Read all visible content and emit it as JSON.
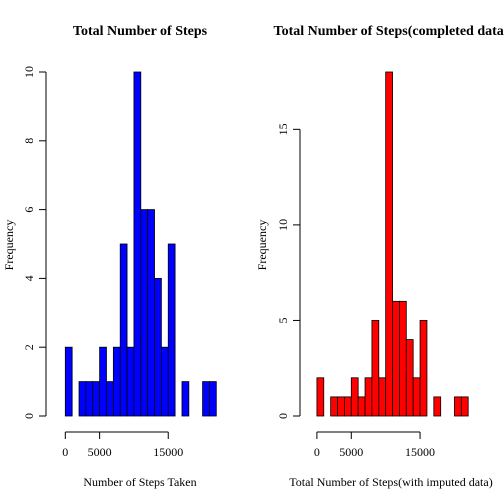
{
  "chart_data": [
    {
      "type": "bar",
      "histogram": true,
      "title": "Total Number of Steps",
      "xlabel": "Number of Steps Taken",
      "ylabel": "Frequency",
      "bar_color": "#0000FF",
      "bin_width": 1000,
      "bin_starts": [
        0,
        1000,
        2000,
        3000,
        4000,
        5000,
        6000,
        7000,
        8000,
        9000,
        10000,
        11000,
        12000,
        13000,
        14000,
        15000,
        16000,
        17000,
        18000,
        19000,
        20000,
        21000
      ],
      "values": [
        2,
        0,
        1,
        1,
        1,
        2,
        1,
        2,
        5,
        2,
        10,
        6,
        6,
        4,
        2,
        5,
        0,
        1,
        0,
        0,
        1,
        1
      ],
      "xlim": [
        0,
        22000
      ],
      "ylim": [
        0,
        10
      ],
      "x_ticks": [
        0,
        5000,
        15000
      ],
      "y_ticks": [
        0,
        2,
        4,
        6,
        8,
        10
      ]
    },
    {
      "type": "bar",
      "histogram": true,
      "title": "Total Number of Steps(completed data)",
      "xlabel": "Total Number of Steps(with imputed data)",
      "ylabel": "Frequency",
      "bar_color": "#FF0000",
      "bin_width": 1000,
      "bin_starts": [
        0,
        1000,
        2000,
        3000,
        4000,
        5000,
        6000,
        7000,
        8000,
        9000,
        10000,
        11000,
        12000,
        13000,
        14000,
        15000,
        16000,
        17000,
        18000,
        19000,
        20000,
        21000
      ],
      "values": [
        2,
        0,
        1,
        1,
        1,
        2,
        1,
        2,
        5,
        2,
        18,
        6,
        6,
        4,
        2,
        5,
        0,
        1,
        0,
        0,
        1,
        1
      ],
      "xlim": [
        0,
        22000
      ],
      "ylim": [
        0,
        18
      ],
      "x_ticks": [
        0,
        5000,
        15000
      ],
      "y_ticks": [
        0,
        5,
        10,
        15
      ]
    }
  ]
}
